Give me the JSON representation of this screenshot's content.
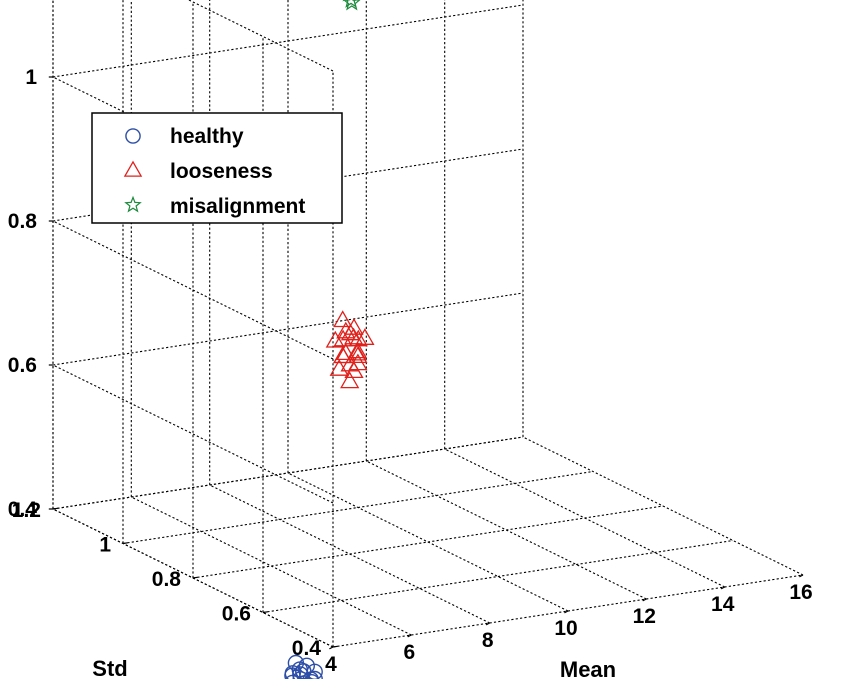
{
  "chart_data": {
    "type": "scatter3d",
    "title": "",
    "xlabel": "Mean",
    "ylabel": "Std",
    "zlabel": "",
    "xlim": [
      4,
      16
    ],
    "ylim": [
      0.4,
      1.2
    ],
    "zlim": [
      0.4,
      1.2
    ],
    "xticks": [
      "4",
      "6",
      "8",
      "10",
      "12",
      "14",
      "16"
    ],
    "yticks": [
      "0.4",
      "0.6",
      "0.8",
      "1",
      "1.2"
    ],
    "zticks": [
      "0.4",
      "0.6",
      "0.8",
      "1",
      "1.2"
    ],
    "grid": true,
    "legend_position": "top-left",
    "series": [
      {
        "name": "healthy",
        "marker": "circle",
        "color": "#2e4fa8",
        "x": [
          3.5,
          3.6,
          3.7,
          3.6,
          3.8,
          3.5,
          3.7,
          3.6,
          3.9,
          3.8,
          3.6,
          3.7,
          3.5,
          3.8,
          3.6,
          3.7,
          3.9,
          3.6,
          3.8,
          3.7
        ],
        "y": [
          0.46,
          0.44,
          0.45,
          0.47,
          0.43,
          0.45,
          0.46,
          0.44,
          0.45,
          0.43,
          0.47,
          0.44,
          0.46,
          0.45,
          0.43,
          0.46,
          0.44,
          0.45,
          0.47,
          0.43
        ],
        "z": [
          0.35,
          0.36,
          0.34,
          0.33,
          0.35,
          0.37,
          0.33,
          0.36,
          0.34,
          0.36,
          0.35,
          0.32,
          0.34,
          0.33,
          0.37,
          0.35,
          0.33,
          0.36,
          0.34,
          0.35
        ]
      },
      {
        "name": "looseness",
        "marker": "triangle",
        "color": "#e0201b",
        "x": [
          8.0,
          8.1,
          8.2,
          7.9,
          8.3,
          8.0,
          8.2,
          8.1,
          8.4,
          7.9,
          8.0,
          8.3,
          8.1,
          8.2,
          8.0,
          8.3,
          8.1,
          7.9,
          8.2,
          8.0
        ],
        "y": [
          0.82,
          0.8,
          0.81,
          0.83,
          0.79,
          0.82,
          0.8,
          0.81,
          0.82,
          0.8,
          0.83,
          0.81,
          0.79,
          0.82,
          0.8,
          0.81,
          0.83,
          0.8,
          0.81,
          0.82
        ],
        "z": [
          0.72,
          0.7,
          0.71,
          0.69,
          0.7,
          0.67,
          0.68,
          0.66,
          0.69,
          0.71,
          0.65,
          0.67,
          0.68,
          0.7,
          0.64,
          0.66,
          0.69,
          0.68,
          0.65,
          0.67
        ]
      },
      {
        "name": "misalignment",
        "marker": "star",
        "color": "#1d8a3c",
        "x": [
          10.0,
          10.2,
          10.1,
          10.3,
          9.9,
          10.4,
          10.1,
          10.2,
          10.0,
          10.3,
          10.5,
          10.1,
          10.2,
          9.9,
          10.4,
          10.2,
          10.0,
          10.3,
          10.1,
          10.2,
          10.4,
          10.0
        ],
        "y": [
          1.03,
          1.02,
          1.04,
          1.03,
          1.05,
          1.02,
          1.03,
          1.04,
          1.02,
          1.05,
          1.03,
          1.02,
          1.04,
          1.03,
          1.02,
          1.05,
          1.04,
          1.03,
          1.02,
          1.04,
          1.03,
          1.05
        ],
        "z": [
          1.17,
          1.15,
          1.16,
          1.14,
          1.13,
          1.15,
          1.12,
          1.13,
          1.1,
          1.12,
          1.14,
          1.11,
          1.09,
          1.16,
          1.13,
          1.1,
          1.14,
          1.12,
          1.15,
          1.11,
          1.13,
          1.12
        ]
      }
    ]
  }
}
